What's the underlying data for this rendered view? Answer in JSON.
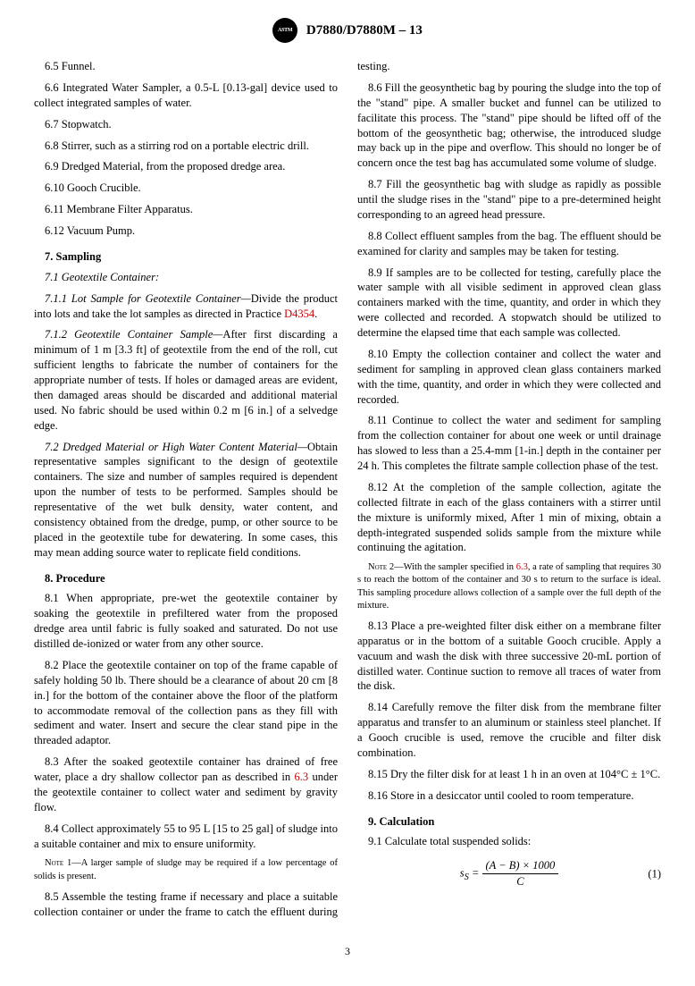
{
  "header": {
    "standard": "D7880/D7880M – 13"
  },
  "left": {
    "p6_5": "6.5 Funnel.",
    "p6_6": "6.6 Integrated Water Sampler, a 0.5-L [0.13-gal] device used to collect integrated samples of water.",
    "p6_7": "6.7 Stopwatch.",
    "p6_8": "6.8 Stirrer, such as a stirring rod on a portable electric drill.",
    "p6_9": "6.9 Dredged Material, from the proposed dredge area.",
    "p6_10": "6.10 Gooch Crucible.",
    "p6_11": "6.11 Membrane Filter Apparatus.",
    "p6_12": "6.12 Vacuum Pump.",
    "s7": "7. Sampling",
    "p7_1": "7.1 Geotextile Container:",
    "p7_1_1a": "7.1.1 Lot Sample for Geotextile Container—",
    "p7_1_1b": "Divide the product into lots and take the lot samples as directed in Practice ",
    "p7_1_1c": "D4354",
    "p7_1_1d": ".",
    "p7_1_2a": "7.1.2 Geotextile Container Sample—",
    "p7_1_2b": "After first discarding a minimum of 1 m [3.3 ft] of geotextile from the end of the roll, cut sufficient lengths to fabricate the number of containers for the appropriate number of tests. If holes or damaged areas are evident, then damaged areas should be discarded and additional material used. No fabric should be used within 0.2 m [6 in.] of a selvedge edge.",
    "p7_2a": "7.2 Dredged Material or High Water Content Material—",
    "p7_2b": "Obtain representative samples significant to the design of geotextile containers. The size and number of samples required is dependent upon the number of tests to be performed. Samples should be representative of the wet bulk density, water content, and consistency obtained from the dredge, pump, or other source to be placed in the geotextile tube for dewatering. In some cases, this may mean adding source water to replicate field conditions.",
    "s8": "8. Procedure",
    "p8_1": "8.1 When appropriate, pre-wet the geotextile container by soaking the geotextile in prefiltered water from the proposed dredge area until fabric is fully soaked and saturated. Do not use distilled de-ionized or water from any other source.",
    "p8_2": "8.2 Place the geotextile container on top of the frame capable of safely holding 50 lb. There should be a clearance of about 20 cm [8 in.] for the bottom of the container above the floor of the platform to accommodate removal of the collection pans as they fill with sediment and water. Insert and secure the clear stand pipe in the threaded adaptor.",
    "p8_3a": "8.3 After the soaked geotextile container has drained of free water, place a dry shallow collector pan as described in ",
    "p8_3b": "6.3",
    "p8_3c": " under the geotextile container to collect water and sediment by gravity flow.",
    "p8_4": "8.4 Collect approximately 55 to 95 L [15 to 25 gal] of sludge into a suitable container and mix to ensure uniformity.",
    "note1label": "Note 1—",
    "note1": "A larger sample of sludge may be required if a low percentage of solids is present.",
    "p8_5": "8.5 Assemble the testing frame if necessary and place a suitable collection container or under the frame to catch the effluent during testing."
  },
  "right": {
    "p8_6": "8.6 Fill the geosynthetic bag by pouring the sludge into the top of the \"stand\" pipe. A smaller bucket and funnel can be utilized to facilitate this process. The \"stand\" pipe should be lifted off of the bottom of the geosynthetic bag; otherwise, the introduced sludge may back up in the pipe and overflow. This should no longer be of concern once the test bag has accumulated some volume of sludge.",
    "p8_7": "8.7 Fill the geosynthetic bag with sludge as rapidly as possible until the sludge rises in the \"stand\" pipe to a pre-determined height corresponding to an agreed head pressure.",
    "p8_8": "8.8 Collect effluent samples from the bag. The effluent should be examined for clarity and samples may be taken for testing.",
    "p8_9": "8.9 If samples are to be collected for testing, carefully place the water sample with all visible sediment in approved clean glass containers marked with the time, quantity, and order in which they were collected and recorded. A stopwatch should be utilized to determine the elapsed time that each sample was collected.",
    "p8_10": "8.10 Empty the collection container and collect the water and sediment for sampling in approved clean glass containers marked with the time, quantity, and order in which they were collected and recorded.",
    "p8_11": "8.11 Continue to collect the water and sediment for sampling from the collection container for about one week or until drainage has slowed to less than a 25.4-mm [1-in.] depth in the container per 24 h. This completes the filtrate sample collection phase of the test.",
    "p8_12": "8.12 At the completion of the sample collection, agitate the collected filtrate in each of the glass containers with a stirrer until the mixture is uniformly mixed, After 1 min of mixing, obtain a depth-integrated suspended solids sample from the mixture while continuing the agitation.",
    "note2label": "Note 2—",
    "note2a": "With the sampler specified in ",
    "note2b": "6.3",
    "note2c": ", a rate of sampling that requires 30 s to reach the bottom of the container and 30 s to return to the surface is ideal. This sampling procedure allows collection of a sample over the full depth of the mixture.",
    "p8_13": "8.13 Place a pre-weighted filter disk either on a membrane filter apparatus or in the bottom of a suitable Gooch crucible. Apply a vacuum and wash the disk with three successive 20-mL portion of distilled water. Continue suction to remove all traces of water from the disk.",
    "p8_14": "8.14 Carefully remove the filter disk from the membrane filter apparatus and transfer to an aluminum or stainless steel planchet. If a Gooch crucible is used, remove the crucible and filter disk combination.",
    "p8_15": "8.15 Dry the filter disk for at least 1 h in an oven at 104°C ± 1°C.",
    "p8_16": "8.16 Store in a desiccator until cooled to room temperature.",
    "s9": "9. Calculation",
    "p9_1": "9.1 Calculate total suspended solids:",
    "eq": {
      "lhs": "s",
      "sub": "S",
      "num": "(A  −  B) × 1000",
      "den": "C",
      "num_label": "(1)"
    }
  },
  "page_number": "3"
}
